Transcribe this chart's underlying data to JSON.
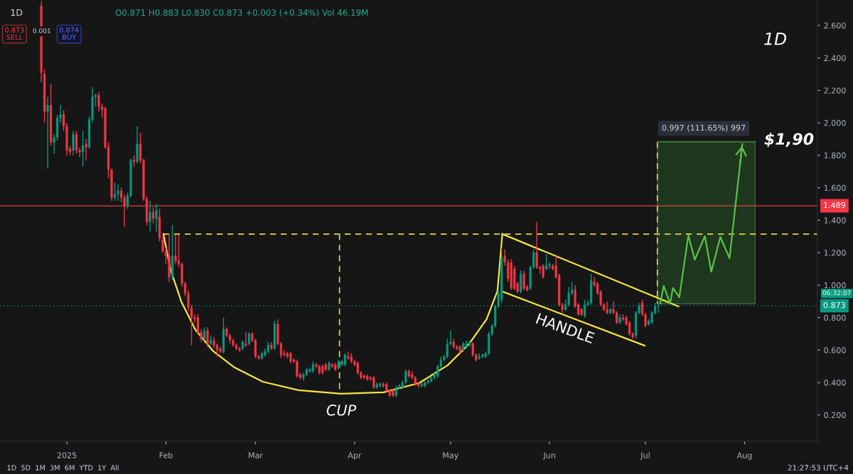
{
  "chart_data": {
    "type": "candlestick",
    "title": "1D",
    "x": [
      "2024-12-24",
      "2024-12-25",
      "2024-12-26",
      "2024-12-27",
      "2024-12-28",
      "2024-12-29",
      "2024-12-30",
      "2024-12-31",
      "2025-01-01",
      "2025-01-02",
      "2025-01-03",
      "2025-01-04",
      "2025-01-05",
      "2025-01-06",
      "2025-01-07",
      "2025-01-08",
      "2025-01-09",
      "2025-01-10",
      "2025-01-11",
      "2025-01-12",
      "2025-01-13",
      "2025-01-14",
      "2025-01-15",
      "2025-01-16",
      "2025-01-17",
      "2025-01-18",
      "2025-01-19",
      "2025-01-20",
      "2025-01-21",
      "2025-01-22",
      "2025-01-23",
      "2025-01-24",
      "2025-01-25",
      "2025-01-26",
      "2025-01-27",
      "2025-01-28",
      "2025-01-29",
      "2025-01-30",
      "2025-01-31",
      "2025-02-01",
      "2025-02-02",
      "2025-02-03",
      "2025-02-04",
      "2025-02-05",
      "2025-02-06",
      "2025-02-07",
      "2025-02-08",
      "2025-02-09",
      "2025-02-10",
      "2025-02-11",
      "2025-02-12",
      "2025-02-13",
      "2025-02-14",
      "2025-02-15",
      "2025-02-16",
      "2025-02-17",
      "2025-02-18",
      "2025-02-19",
      "2025-02-20",
      "2025-02-21",
      "2025-02-22",
      "2025-02-23",
      "2025-02-24",
      "2025-02-25",
      "2025-02-26",
      "2025-02-27",
      "2025-02-28",
      "2025-03-01",
      "2025-03-02",
      "2025-03-03",
      "2025-03-04",
      "2025-03-05",
      "2025-03-06",
      "2025-03-07",
      "2025-03-08",
      "2025-03-09",
      "2025-03-10",
      "2025-03-11",
      "2025-03-12",
      "2025-03-13",
      "2025-03-14",
      "2025-03-15",
      "2025-03-16",
      "2025-03-17",
      "2025-03-18",
      "2025-03-19",
      "2025-03-20",
      "2025-03-21",
      "2025-03-22",
      "2025-03-23",
      "2025-03-24",
      "2025-03-25",
      "2025-03-26",
      "2025-03-27",
      "2025-03-28",
      "2025-03-29",
      "2025-03-30",
      "2025-03-31",
      "2025-04-01",
      "2025-04-02",
      "2025-04-03",
      "2025-04-04",
      "2025-04-05",
      "2025-04-06",
      "2025-04-07",
      "2025-04-08",
      "2025-04-09",
      "2025-04-10",
      "2025-04-11",
      "2025-04-12",
      "2025-04-13",
      "2025-04-14",
      "2025-04-15",
      "2025-04-16",
      "2025-04-17",
      "2025-04-18",
      "2025-04-19",
      "2025-04-20",
      "2025-04-21",
      "2025-04-22",
      "2025-04-23",
      "2025-04-24",
      "2025-04-25",
      "2025-04-26",
      "2025-04-27",
      "2025-04-28",
      "2025-04-29",
      "2025-04-30",
      "2025-05-01",
      "2025-05-02",
      "2025-05-03",
      "2025-05-04",
      "2025-05-05",
      "2025-05-06",
      "2025-05-07",
      "2025-05-08",
      "2025-05-09",
      "2025-05-10",
      "2025-05-11",
      "2025-05-12",
      "2025-05-13",
      "2025-05-14",
      "2025-05-15",
      "2025-05-16",
      "2025-05-17",
      "2025-05-18",
      "2025-05-19",
      "2025-05-20",
      "2025-05-21",
      "2025-05-22",
      "2025-05-23",
      "2025-05-24",
      "2025-05-25",
      "2025-05-26",
      "2025-05-27",
      "2025-05-28",
      "2025-05-29",
      "2025-05-30",
      "2025-05-31",
      "2025-06-01",
      "2025-06-02",
      "2025-06-03",
      "2025-06-04",
      "2025-06-05",
      "2025-06-06",
      "2025-06-07",
      "2025-06-08",
      "2025-06-09",
      "2025-06-10",
      "2025-06-11",
      "2025-06-12",
      "2025-06-13",
      "2025-06-14",
      "2025-06-15",
      "2025-06-16",
      "2025-06-17",
      "2025-06-18",
      "2025-06-19",
      "2025-06-20",
      "2025-06-21",
      "2025-06-22",
      "2025-06-23",
      "2025-06-24",
      "2025-06-25",
      "2025-06-26",
      "2025-06-27",
      "2025-06-28",
      "2025-06-29",
      "2025-06-30",
      "2025-07-01",
      "2025-07-02",
      "2025-07-03",
      "2025-07-04",
      "2025-07-05"
    ],
    "ohlc": [
      [
        2.72,
        2.75,
        2.25,
        2.31
      ],
      [
        2.3,
        2.33,
        2.0,
        2.07
      ],
      [
        2.07,
        2.16,
        1.72,
        2.11
      ],
      [
        2.11,
        2.24,
        1.86,
        1.88
      ],
      [
        1.88,
        1.93,
        1.81,
        1.91
      ],
      [
        1.91,
        2.05,
        1.89,
        2.03
      ],
      [
        2.03,
        2.11,
        2.0,
        2.05
      ],
      [
        2.05,
        2.08,
        1.95,
        1.98
      ],
      [
        1.98,
        2.0,
        1.8,
        1.83
      ],
      [
        1.84,
        1.86,
        1.8,
        1.82
      ],
      [
        1.83,
        1.95,
        1.8,
        1.93
      ],
      [
        1.93,
        1.95,
        1.81,
        1.83
      ],
      [
        1.83,
        1.85,
        1.79,
        1.82
      ],
      [
        1.82,
        1.95,
        1.73,
        1.86
      ],
      [
        1.87,
        1.9,
        1.77,
        1.85
      ],
      [
        1.85,
        2.04,
        1.84,
        2.02
      ],
      [
        2.02,
        2.22,
        2.0,
        2.16
      ],
      [
        2.16,
        2.18,
        2.1,
        2.17
      ],
      [
        2.17,
        2.19,
        2.07,
        2.1
      ],
      [
        2.1,
        2.12,
        2.03,
        2.08
      ],
      [
        2.09,
        2.1,
        1.84,
        1.85
      ],
      [
        1.85,
        1.88,
        1.66,
        1.71
      ],
      [
        1.71,
        1.72,
        1.52,
        1.54
      ],
      [
        1.54,
        1.63,
        1.52,
        1.56
      ],
      [
        1.56,
        1.62,
        1.52,
        1.58
      ],
      [
        1.58,
        1.6,
        1.51,
        1.54
      ],
      [
        1.54,
        1.56,
        1.36,
        1.49
      ],
      [
        1.49,
        1.57,
        1.47,
        1.55
      ],
      [
        1.55,
        1.78,
        1.54,
        1.77
      ],
      [
        1.77,
        1.8,
        1.73,
        1.76
      ],
      [
        1.76,
        1.98,
        1.75,
        1.87
      ],
      [
        1.87,
        1.94,
        1.75,
        1.77
      ],
      [
        1.77,
        1.78,
        1.52,
        1.53
      ],
      [
        1.53,
        1.55,
        1.37,
        1.39
      ],
      [
        1.39,
        1.52,
        1.33,
        1.45
      ],
      [
        1.45,
        1.48,
        1.38,
        1.41
      ],
      [
        1.41,
        1.5,
        1.33,
        1.46
      ],
      [
        1.42,
        1.47,
        1.27,
        1.29
      ],
      [
        1.28,
        1.3,
        1.2,
        1.21
      ],
      [
        1.21,
        1.23,
        1.13,
        1.18
      ],
      [
        1.18,
        1.32,
        1.02,
        1.05
      ],
      [
        1.05,
        1.37,
        1.03,
        1.18
      ],
      [
        1.18,
        1.31,
        1.13,
        1.15
      ],
      [
        1.15,
        1.31,
        1.11,
        1.13
      ],
      [
        1.13,
        1.14,
        0.99,
        1.01
      ],
      [
        1.01,
        1.02,
        0.93,
        0.95
      ],
      [
        0.95,
        0.97,
        0.84,
        0.86
      ],
      [
        0.86,
        0.88,
        0.63,
        0.8
      ],
      [
        0.8,
        0.82,
        0.77,
        0.79
      ],
      [
        0.8,
        0.82,
        0.7,
        0.71
      ],
      [
        0.71,
        0.73,
        0.65,
        0.67
      ],
      [
        0.67,
        0.74,
        0.66,
        0.72
      ],
      [
        0.72,
        0.74,
        0.62,
        0.64
      ],
      [
        0.64,
        0.69,
        0.63,
        0.66
      ],
      [
        0.66,
        0.68,
        0.61,
        0.63
      ],
      [
        0.63,
        0.64,
        0.56,
        0.6
      ],
      [
        0.61,
        0.62,
        0.58,
        0.59
      ],
      [
        0.59,
        0.8,
        0.58,
        0.73
      ],
      [
        0.73,
        0.74,
        0.68,
        0.69
      ],
      [
        0.69,
        0.7,
        0.64,
        0.66
      ],
      [
        0.66,
        0.67,
        0.62,
        0.63
      ],
      [
        0.63,
        0.64,
        0.6,
        0.61
      ],
      [
        0.61,
        0.62,
        0.59,
        0.6
      ],
      [
        0.61,
        0.66,
        0.6,
        0.65
      ],
      [
        0.64,
        0.71,
        0.62,
        0.63
      ],
      [
        0.64,
        0.71,
        0.63,
        0.7
      ],
      [
        0.7,
        0.71,
        0.65,
        0.66
      ],
      [
        0.66,
        0.67,
        0.55,
        0.56
      ],
      [
        0.56,
        0.57,
        0.54,
        0.55
      ],
      [
        0.55,
        0.59,
        0.54,
        0.58
      ],
      [
        0.57,
        0.61,
        0.56,
        0.59
      ],
      [
        0.59,
        0.65,
        0.58,
        0.63
      ],
      [
        0.63,
        0.65,
        0.6,
        0.61
      ],
      [
        0.61,
        0.78,
        0.6,
        0.76
      ],
      [
        0.76,
        0.79,
        0.63,
        0.64
      ],
      [
        0.64,
        0.65,
        0.55,
        0.57
      ],
      [
        0.58,
        0.6,
        0.56,
        0.57
      ],
      [
        0.58,
        0.59,
        0.55,
        0.56
      ],
      [
        0.58,
        0.59,
        0.52,
        0.53
      ],
      [
        0.54,
        0.55,
        0.52,
        0.53
      ],
      [
        0.53,
        0.54,
        0.43,
        0.44
      ],
      [
        0.45,
        0.46,
        0.42,
        0.43
      ],
      [
        0.43,
        0.46,
        0.41,
        0.45
      ],
      [
        0.45,
        0.49,
        0.44,
        0.48
      ],
      [
        0.47,
        0.49,
        0.46,
        0.48
      ],
      [
        0.47,
        0.53,
        0.46,
        0.51
      ],
      [
        0.51,
        0.52,
        0.49,
        0.5
      ],
      [
        0.5,
        0.51,
        0.45,
        0.46
      ],
      [
        0.5,
        0.51,
        0.45,
        0.46
      ],
      [
        0.51,
        0.52,
        0.47,
        0.48
      ],
      [
        0.48,
        0.53,
        0.47,
        0.52
      ],
      [
        0.51,
        0.52,
        0.49,
        0.5
      ],
      [
        0.51,
        0.52,
        0.47,
        0.48
      ],
      [
        0.49,
        0.54,
        0.48,
        0.53
      ],
      [
        0.51,
        0.54,
        0.5,
        0.53
      ],
      [
        0.51,
        0.58,
        0.5,
        0.57
      ],
      [
        0.56,
        0.59,
        0.54,
        0.55
      ],
      [
        0.56,
        0.58,
        0.52,
        0.53
      ],
      [
        0.53,
        0.54,
        0.5,
        0.51
      ],
      [
        0.52,
        0.53,
        0.45,
        0.46
      ],
      [
        0.46,
        0.47,
        0.42,
        0.43
      ],
      [
        0.44,
        0.45,
        0.42,
        0.43
      ],
      [
        0.44,
        0.45,
        0.41,
        0.42
      ],
      [
        0.43,
        0.44,
        0.41,
        0.42
      ],
      [
        0.43,
        0.44,
        0.36,
        0.37
      ],
      [
        0.37,
        0.4,
        0.36,
        0.39
      ],
      [
        0.38,
        0.4,
        0.37,
        0.39
      ],
      [
        0.39,
        0.4,
        0.37,
        0.38
      ],
      [
        0.39,
        0.4,
        0.34,
        0.35
      ],
      [
        0.35,
        0.36,
        0.31,
        0.32
      ],
      [
        0.35,
        0.36,
        0.31,
        0.32
      ],
      [
        0.32,
        0.38,
        0.31,
        0.37
      ],
      [
        0.37,
        0.39,
        0.36,
        0.38
      ],
      [
        0.37,
        0.41,
        0.36,
        0.4
      ],
      [
        0.4,
        0.48,
        0.39,
        0.47
      ],
      [
        0.47,
        0.48,
        0.43,
        0.44
      ],
      [
        0.45,
        0.47,
        0.42,
        0.43
      ],
      [
        0.43,
        0.44,
        0.38,
        0.39
      ],
      [
        0.39,
        0.4,
        0.37,
        0.38
      ],
      [
        0.38,
        0.4,
        0.37,
        0.39
      ],
      [
        0.38,
        0.41,
        0.37,
        0.4
      ],
      [
        0.4,
        0.42,
        0.39,
        0.41
      ],
      [
        0.41,
        0.44,
        0.4,
        0.43
      ],
      [
        0.43,
        0.46,
        0.42,
        0.45
      ],
      [
        0.44,
        0.51,
        0.43,
        0.5
      ],
      [
        0.5,
        0.56,
        0.49,
        0.54
      ],
      [
        0.54,
        0.57,
        0.53,
        0.56
      ],
      [
        0.56,
        0.67,
        0.55,
        0.64
      ],
      [
        0.64,
        0.72,
        0.63,
        0.65
      ],
      [
        0.65,
        0.67,
        0.61,
        0.62
      ],
      [
        0.62,
        0.63,
        0.6,
        0.61
      ],
      [
        0.62,
        0.63,
        0.58,
        0.59
      ],
      [
        0.6,
        0.65,
        0.59,
        0.64
      ],
      [
        0.62,
        0.66,
        0.61,
        0.64
      ],
      [
        0.63,
        0.66,
        0.62,
        0.65
      ],
      [
        0.64,
        0.65,
        0.56,
        0.57
      ],
      [
        0.57,
        0.58,
        0.53,
        0.54
      ],
      [
        0.55,
        0.58,
        0.54,
        0.56
      ],
      [
        0.56,
        0.58,
        0.55,
        0.57
      ],
      [
        0.56,
        0.59,
        0.55,
        0.58
      ],
      [
        0.58,
        0.71,
        0.57,
        0.7
      ],
      [
        0.7,
        0.76,
        0.69,
        0.75
      ],
      [
        0.75,
        0.88,
        0.74,
        0.87
      ],
      [
        0.87,
        0.97,
        0.86,
        0.95
      ],
      [
        0.91,
        1.23,
        0.89,
        1.17
      ],
      [
        1.18,
        1.22,
        1.12,
        1.14
      ],
      [
        1.14,
        1.16,
        1.02,
        1.04
      ],
      [
        1.14,
        1.16,
        0.97,
        0.98
      ],
      [
        1.1,
        1.12,
        0.97,
        0.98
      ],
      [
        1.01,
        1.02,
        0.95,
        0.96
      ],
      [
        0.96,
        1.09,
        0.95,
        1.07
      ],
      [
        1.07,
        1.09,
        0.97,
        0.98
      ],
      [
        0.99,
        1.0,
        0.96,
        0.97
      ],
      [
        0.98,
        1.12,
        0.97,
        1.11
      ],
      [
        1.11,
        1.22,
        1.1,
        1.2
      ],
      [
        1.2,
        1.39,
        1.1,
        1.11
      ],
      [
        1.11,
        1.12,
        1.07,
        1.1
      ],
      [
        1.12,
        1.13,
        1.04,
        1.05
      ],
      [
        1.1,
        1.19,
        1.09,
        1.12
      ],
      [
        1.12,
        1.14,
        1.1,
        1.13
      ],
      [
        1.12,
        1.13,
        1.09,
        1.1
      ],
      [
        1.12,
        1.18,
        1.04,
        1.05
      ],
      [
        1.06,
        1.07,
        0.87,
        0.88
      ],
      [
        0.88,
        0.89,
        0.83,
        0.85
      ],
      [
        0.85,
        0.91,
        0.84,
        0.88
      ],
      [
        0.88,
        0.99,
        0.87,
        0.95
      ],
      [
        0.95,
        1.02,
        0.94,
        0.97
      ],
      [
        0.97,
        1.0,
        0.86,
        0.87
      ],
      [
        0.88,
        0.89,
        0.81,
        0.82
      ],
      [
        0.85,
        0.86,
        0.81,
        0.82
      ],
      [
        0.81,
        0.91,
        0.8,
        0.88
      ],
      [
        0.88,
        0.91,
        0.87,
        0.89
      ],
      [
        0.89,
        1.07,
        0.88,
        1.03
      ],
      [
        1.02,
        1.05,
        0.99,
        1.0
      ],
      [
        1.01,
        1.02,
        0.94,
        0.95
      ],
      [
        0.96,
        0.97,
        0.87,
        0.88
      ],
      [
        0.88,
        0.89,
        0.84,
        0.85
      ],
      [
        0.85,
        0.9,
        0.82,
        0.83
      ],
      [
        0.83,
        0.86,
        0.82,
        0.85
      ],
      [
        0.85,
        0.9,
        0.82,
        0.83
      ],
      [
        0.83,
        0.84,
        0.76,
        0.77
      ],
      [
        0.77,
        0.82,
        0.76,
        0.8
      ],
      [
        0.8,
        0.82,
        0.78,
        0.79
      ],
      [
        0.8,
        0.81,
        0.75,
        0.76
      ],
      [
        0.77,
        0.78,
        0.69,
        0.7
      ],
      [
        0.7,
        0.71,
        0.67,
        0.68
      ],
      [
        0.69,
        0.84,
        0.67,
        0.83
      ],
      [
        0.83,
        0.89,
        0.82,
        0.87
      ],
      [
        0.89,
        0.91,
        0.81,
        0.82
      ],
      [
        0.82,
        0.83,
        0.74,
        0.75
      ],
      [
        0.76,
        0.79,
        0.75,
        0.78
      ],
      [
        0.77,
        0.84,
        0.76,
        0.83
      ],
      [
        0.83,
        0.89,
        0.82,
        0.87
      ],
      [
        0.871,
        0.883,
        0.83,
        0.873
      ]
    ],
    "series": [
      {
        "type": "line",
        "color": "#f5e543",
        "line_style": "solid",
        "x": [
          "2025-01-31T05:00",
          "2025-02-02T10:00",
          "2025-02-05T19:00",
          "2025-02-10T05:00",
          "2025-02-15T19:00",
          "2025-02-22T10:00",
          "2025-03-03T07:00",
          "2025-03-14T10:00",
          "2025-03-27T19:00",
          "2025-04-10T02:00",
          "2025-04-21T05:00",
          "2025-04-30T02:00",
          "2025-05-06T19:00",
          "2025-05-12T07:00",
          "2025-05-15T17:00",
          "2025-05-17T05:00"
        ],
        "values": [
          1.315,
          1.096,
          0.899,
          0.725,
          0.593,
          0.493,
          0.405,
          0.353,
          0.331,
          0.34,
          0.397,
          0.506,
          0.637,
          0.79,
          0.965,
          1.315
        ]
      },
      {
        "type": "line",
        "color": "#f5e543",
        "line_style": "solid",
        "x": [
          "2025-05-17T05:00",
          "2025-07-11T07:00"
        ],
        "values": [
          1.315,
          0.869
        ]
      },
      {
        "type": "line",
        "color": "#f5e543",
        "line_style": "solid",
        "x": [
          "2025-05-17T05:00",
          "2025-06-30T17:00"
        ],
        "values": [
          0.961,
          0.628
        ]
      },
      {
        "type": "line",
        "color": "#e6d84a",
        "line_style": "dashed",
        "x": [
          "2025-01-31T05:00",
          "2025-08-23T17:00"
        ],
        "values": [
          1.315,
          1.315
        ]
      },
      {
        "type": "line",
        "color": "#e6d84a",
        "line_style": "dashed",
        "x": [
          "2025-03-27T07:00",
          "2025-03-27T07:00"
        ],
        "values": [
          1.315,
          0.331
        ]
      },
      {
        "type": "line",
        "color": "#e6d84a",
        "line_style": "dashed",
        "x": [
          "2025-07-04T17:00",
          "2025-07-04T17:00"
        ],
        "values": [
          1.883,
          0.886
        ]
      },
      {
        "type": "line",
        "color": "#3d6b3e",
        "line_style": "solid",
        "x": [
          "2025-07-04T17:00",
          "2025-08-04T07:00"
        ],
        "values": [
          1.883,
          1.883
        ],
        "lower": [
          0.886,
          0.886
        ],
        "upper": [
          1.883,
          1.883
        ]
      },
      {
        "type": "line",
        "color": "#5cbf4a",
        "line_style": "solid",
        "x": [
          "2025-07-05T14:00",
          "2025-07-06T17:00",
          "2025-07-08T17:00",
          "2025-07-09T14:00",
          "2025-07-11T14:00",
          "2025-07-14T10:00",
          "2025-07-16T10:00",
          "2025-07-19T14:00",
          "2025-07-21T14:00",
          "2025-07-24T10:00",
          "2025-07-27T07:00",
          "2025-07-31T07:00"
        ],
        "values": [
          0.886,
          0.996,
          0.886,
          0.983,
          0.926,
          1.306,
          1.157,
          1.302,
          1.083,
          1.297,
          1.166,
          1.87
        ]
      }
    ],
    "xlim": [
      "2024-12-11T02:00",
      "2025-08-23T17:00"
    ],
    "xticks": [
      {
        "value": "2025-01-01",
        "label": "2025"
      },
      {
        "value": "2025-02-01",
        "label": "Feb"
      },
      {
        "value": "2025-03-01",
        "label": "Mar"
      },
      {
        "value": "2025-04-01",
        "label": "Apr"
      },
      {
        "value": "2025-05-01",
        "label": "May"
      },
      {
        "value": "2025-06-01",
        "label": "Jun"
      },
      {
        "value": "2025-07-01",
        "label": "Jul"
      },
      {
        "value": "2025-08-01",
        "label": "Aug"
      }
    ],
    "ylim": [
      0.038,
      2.757
    ],
    "yticks": [
      {
        "value": 0.2,
        "label": "0.200"
      },
      {
        "value": 0.4,
        "label": "0.400"
      },
      {
        "value": 0.6,
        "label": "0.600"
      },
      {
        "value": 0.8,
        "label": "0.800"
      },
      {
        "value": 1.0,
        "label": "1.000"
      },
      {
        "value": 1.2,
        "label": "1.200"
      },
      {
        "value": 1.4,
        "label": "1.400"
      },
      {
        "value": 1.6,
        "label": "1.600"
      },
      {
        "value": 1.8,
        "label": "1.800"
      },
      {
        "value": 2.0,
        "label": "2.000"
      },
      {
        "value": 2.2,
        "label": "2.200"
      },
      {
        "value": 2.4,
        "label": "2.400"
      },
      {
        "value": 2.6,
        "label": "2.600"
      }
    ],
    "ref_lines": [
      {
        "axis": "y",
        "value": 1.489,
        "label": "1.489",
        "color": "#f23645",
        "line_style": "solid"
      },
      {
        "axis": "y",
        "value": 0.873,
        "label": "0.873",
        "color": "#089981",
        "line_style": "dotted"
      }
    ],
    "annotations": [
      "1D",
      "O0.871 H0.883 L0.830 C0.873 +0.003 (+0.34%) Vol 46.19M",
      "0.873\nSELL",
      "0.001",
      "0.874\nBUY",
      "1D  5D  1M  3M  6M  YTD  1Y  All",
      "21:27:53 UTC+4",
      "06:32:07",
      "CUP",
      "HANDLE",
      "$1,90",
      "0.997 (111.65%) 997"
    ]
  }
}
